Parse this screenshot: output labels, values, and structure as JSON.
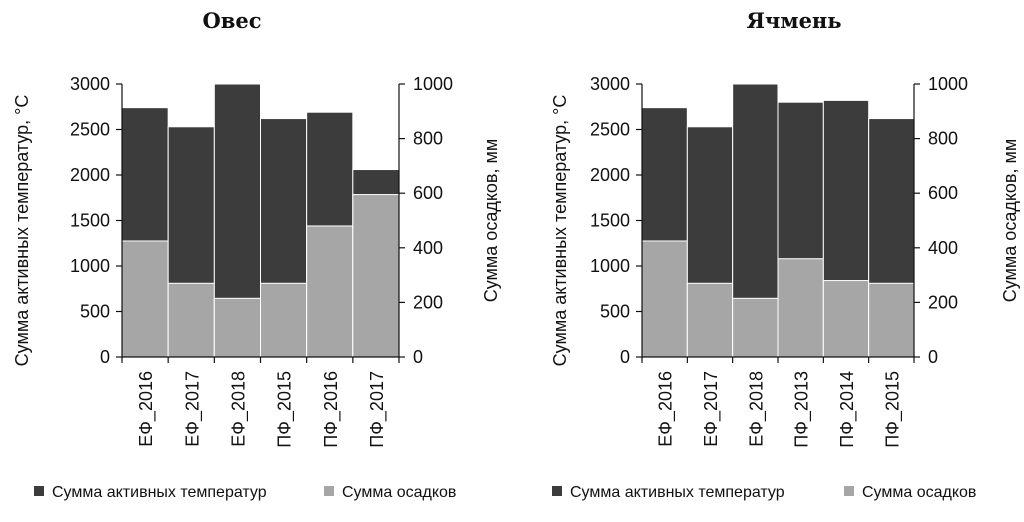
{
  "colors": {
    "temperature": "#3c3c3c",
    "precipitation": "#a6a6a6",
    "axis": "#111111"
  },
  "chart_data": [
    {
      "type": "bar",
      "title": "Овес",
      "categories": [
        "ЕФ_2016",
        "ЕФ_2017",
        "ЕФ_2018",
        "ПФ_2015",
        "ПФ_2016",
        "ПФ_2017"
      ],
      "series": [
        {
          "name": "Сумма активных температур",
          "axis": "left",
          "values": [
            2740,
            2530,
            3000,
            2620,
            2690,
            2060
          ]
        },
        {
          "name": "Сумма осадков",
          "axis": "right",
          "values": [
            425,
            270,
            215,
            270,
            480,
            595
          ]
        }
      ],
      "ylabel": "Сумма активных температур, °С",
      "y2label": "Сумма осадков, мм",
      "ylim": [
        0,
        3000
      ],
      "y2lim": [
        0,
        1000
      ],
      "yticks": [
        "0",
        "500",
        "1000",
        "1500",
        "2000",
        "2500",
        "3000"
      ],
      "y2ticks": [
        "0",
        "200",
        "400",
        "600",
        "800",
        "1000"
      ],
      "legend": [
        "Сумма активных температур",
        "Сумма осадков"
      ],
      "legend_position": "bottom",
      "grid": false
    },
    {
      "type": "bar",
      "title": "Ячмень",
      "categories": [
        "ЕФ_2016",
        "ЕФ_2017",
        "ЕФ_2018",
        "ПФ_2013",
        "ПФ_2014",
        "ПФ_2015"
      ],
      "series": [
        {
          "name": "Сумма активных температур",
          "axis": "left",
          "values": [
            2740,
            2530,
            3000,
            2800,
            2820,
            2620
          ]
        },
        {
          "name": "Сумма осадков",
          "axis": "right",
          "values": [
            425,
            270,
            215,
            360,
            280,
            270
          ]
        }
      ],
      "ylabel": "Сумма активных температур, °С",
      "y2label": "Сумма осадков, мм",
      "ylim": [
        0,
        3000
      ],
      "y2lim": [
        0,
        1000
      ],
      "yticks": [
        "0",
        "500",
        "1000",
        "1500",
        "2000",
        "2500",
        "3000"
      ],
      "y2ticks": [
        "0",
        "200",
        "400",
        "600",
        "800",
        "1000"
      ],
      "legend": [
        "Сумма активных температур",
        "Сумма осадков"
      ],
      "legend_position": "bottom",
      "grid": false
    }
  ]
}
